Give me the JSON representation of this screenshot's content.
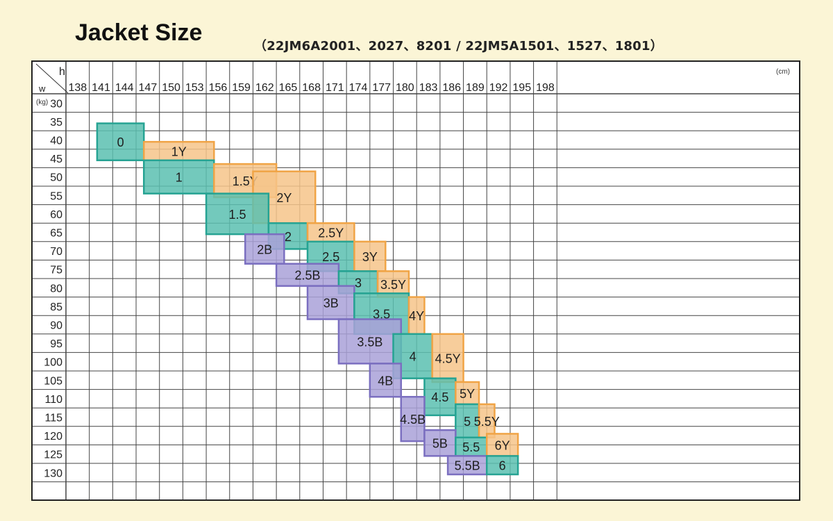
{
  "title": "Jacket Size",
  "subtitle": "（22JM6A2001、2027、8201 / 22JM5A1501、1527、1801）",
  "colors": {
    "background": "#fbf5d6",
    "adult": "#5bbfb0",
    "adult_edge": "#26a393",
    "young": "#f6c48a",
    "young_edge": "#f0a446",
    "big": "#a9a1d8",
    "big_edge": "#7b6fc0",
    "grid": "#444444"
  },
  "chart_data": {
    "type": "table",
    "title": "Jacket Size",
    "x_axis": {
      "corner_label": "h",
      "unit": "(cm)",
      "ticks": [
        "138",
        "141",
        "144",
        "147",
        "150",
        "153",
        "156",
        "159",
        "162",
        "165",
        "168",
        "171",
        "174",
        "177",
        "180",
        "183",
        "186",
        "189",
        "192",
        "195",
        "198"
      ]
    },
    "y_axis": {
      "corner_label": "w",
      "unit": "(kg)",
      "ticks": [
        "30",
        "35",
        "40",
        "45",
        "50",
        "55",
        "60",
        "65",
        "70",
        "75",
        "80",
        "85",
        "90",
        "95",
        "100",
        "105",
        "110",
        "115",
        "120",
        "125",
        "130"
      ]
    },
    "regions": [
      {
        "label": "0",
        "type": "adult",
        "h": [
          140.5,
          146.5
        ],
        "w": [
          35.5,
          45.5
        ]
      },
      {
        "label": "1Y",
        "type": "young",
        "h": [
          146.5,
          155.5
        ],
        "w": [
          40.5,
          45.5
        ]
      },
      {
        "label": "1",
        "type": "adult",
        "h": [
          146.5,
          155.5
        ],
        "w": [
          45.5,
          54.5
        ]
      },
      {
        "label": "1.5Y",
        "type": "young",
        "h": [
          155.5,
          163.5
        ],
        "w": [
          46.5,
          55.5
        ]
      },
      {
        "label": "2Y",
        "type": "young",
        "h": [
          160.5,
          168.5
        ],
        "w": [
          48.5,
          62.5
        ]
      },
      {
        "label": "1.5",
        "type": "adult",
        "h": [
          154.5,
          162.5
        ],
        "w": [
          54.5,
          65.5
        ]
      },
      {
        "label": "2",
        "type": "adult",
        "h": [
          162.5,
          167.5
        ],
        "w": [
          62.5,
          69.5
        ]
      },
      {
        "label": "2.5Y",
        "type": "young",
        "h": [
          167.5,
          173.5
        ],
        "w": [
          62.5,
          67.5
        ]
      },
      {
        "label": "2B",
        "type": "big",
        "h": [
          159.5,
          164.5
        ],
        "w": [
          65.5,
          73.5
        ]
      },
      {
        "label": "2.5",
        "type": "adult",
        "h": [
          167.5,
          173.5
        ],
        "w": [
          67.5,
          75.5
        ]
      },
      {
        "label": "3Y",
        "type": "young",
        "h": [
          173.5,
          177.5
        ],
        "w": [
          67.5,
          75.5
        ]
      },
      {
        "label": "2.5B",
        "type": "big",
        "h": [
          163.5,
          171.5
        ],
        "w": [
          73.5,
          79.5
        ]
      },
      {
        "label": "3",
        "type": "adult",
        "h": [
          171.5,
          176.5
        ],
        "w": [
          75.5,
          81.5
        ]
      },
      {
        "label": "3.5Y",
        "type": "young",
        "h": [
          176.5,
          180.5
        ],
        "w": [
          75.5,
          82.5
        ]
      },
      {
        "label": "3B",
        "type": "big",
        "h": [
          167.5,
          173.5
        ],
        "w": [
          79.5,
          88.5
        ]
      },
      {
        "label": "3.5",
        "type": "adult",
        "h": [
          173.5,
          180.5
        ],
        "w": [
          81.5,
          92.5
        ]
      },
      {
        "label": "4Y",
        "type": "young",
        "h": [
          180.5,
          182.5
        ],
        "w": [
          82.5,
          92.5
        ]
      },
      {
        "label": "3.5B",
        "type": "big",
        "h": [
          171.5,
          179.5
        ],
        "w": [
          88.5,
          100.5
        ]
      },
      {
        "label": "4",
        "type": "adult",
        "h": [
          178.5,
          183.5
        ],
        "w": [
          92.5,
          104.5
        ]
      },
      {
        "label": "4.5Y",
        "type": "young",
        "h": [
          183.5,
          187.5
        ],
        "w": [
          92.5,
          105.5
        ]
      },
      {
        "label": "4B",
        "type": "big",
        "h": [
          175.5,
          179.5
        ],
        "w": [
          100.5,
          109.5
        ]
      },
      {
        "label": "4.5",
        "type": "adult",
        "h": [
          182.5,
          186.5
        ],
        "w": [
          104.5,
          114.5
        ]
      },
      {
        "label": "5Y",
        "type": "young",
        "h": [
          186.5,
          189.5
        ],
        "w": [
          105.5,
          111.5
        ]
      },
      {
        "label": "5",
        "type": "adult",
        "h": [
          186.5,
          189.5
        ],
        "w": [
          111.5,
          120.5
        ]
      },
      {
        "label": "5.5Y",
        "type": "young",
        "h": [
          189.5,
          191.5
        ],
        "w": [
          111.5,
          120.5
        ]
      },
      {
        "label": "4.5B",
        "type": "big",
        "h": [
          179.5,
          182.5
        ],
        "w": [
          109.5,
          121.5
        ]
      },
      {
        "label": "5B",
        "type": "big",
        "h": [
          182.5,
          186.5
        ],
        "w": [
          118.5,
          125.5
        ]
      },
      {
        "label": "5.5",
        "type": "adult",
        "h": [
          186.5,
          190.5
        ],
        "w": [
          120.5,
          125.5
        ]
      },
      {
        "label": "6Y",
        "type": "young",
        "h": [
          190.5,
          194.5
        ],
        "w": [
          119.5,
          125.5
        ]
      },
      {
        "label": "5.5B",
        "type": "big",
        "h": [
          185.5,
          190.5
        ],
        "w": [
          125.5,
          130.5
        ]
      },
      {
        "label": "6",
        "type": "adult",
        "h": [
          190.5,
          194.5
        ],
        "w": [
          125.5,
          130.5
        ]
      }
    ]
  }
}
